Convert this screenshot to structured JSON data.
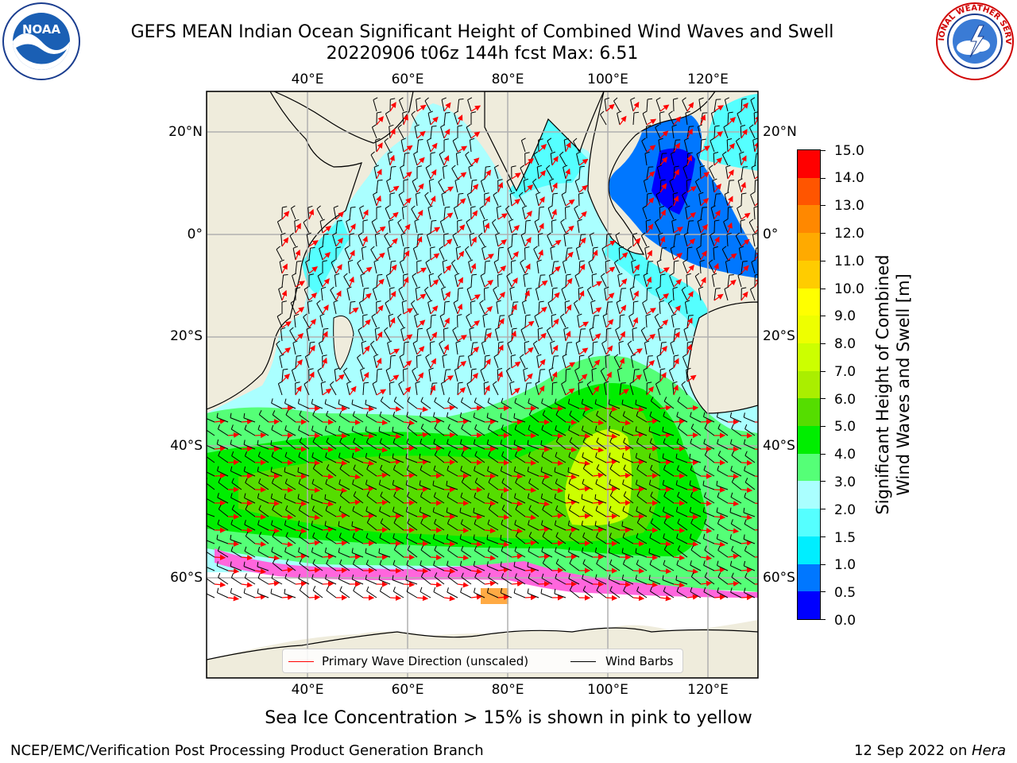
{
  "header": {
    "title_line1": "GEFS MEAN Indian Ocean Significant Height of Combined Wind Waves and Swell",
    "title_line2": "20220906 t06z 144h fcst   Max: 6.51"
  },
  "logos": {
    "noaa": {
      "icon": "noaa-logo",
      "text": "NOAA",
      "ring_text": "NATIONAL OCEANIC AND ATMOSPHERIC ADMINISTRATION · U.S. DEPARTMENT OF COMMERCE"
    },
    "nws": {
      "icon": "nws-logo",
      "ring_text": "NATIONAL WEATHER SERVICE"
    }
  },
  "map": {
    "lon_ticks": [
      "40°E",
      "60°E",
      "80°E",
      "100°E",
      "120°E"
    ],
    "lat_ticks_left": [
      "20°N",
      "0°",
      "20°S",
      "40°S",
      "60°S"
    ],
    "lat_ticks_right": [
      "20°N",
      "0°",
      "20°S",
      "40°S",
      "60°S"
    ],
    "lon_range": [
      21,
      129
    ],
    "lat_range": [
      -77,
      31
    ],
    "land_color": "#efecdc",
    "ocean_no_data_color": "#ffffff"
  },
  "colorbar": {
    "title": "Significant Height of Combined Wind Waves and Swell [m]",
    "title_line1": "Significant Height of Combined",
    "title_line2": "Wind Waves and Swell [m]",
    "labels": [
      "15.0",
      "14.0",
      "13.0",
      "12.0",
      "11.0",
      "10.0",
      "9.0",
      "8.0",
      "7.0",
      "6.0",
      "5.0",
      "4.0",
      "3.0",
      "2.0",
      "1.5",
      "1.0",
      "0.5",
      "0.0"
    ],
    "levels": [
      0.0,
      0.5,
      1.0,
      1.5,
      2.0,
      3.0,
      4.0,
      5.0,
      6.0,
      7.0,
      8.0,
      9.0,
      10.0,
      11.0,
      12.0,
      13.0,
      14.0,
      15.0
    ],
    "colors": [
      "#0000ff",
      "#0077ff",
      "#00eeff",
      "#55ffff",
      "#aaffff",
      "#55ff77",
      "#00ee00",
      "#55dd00",
      "#aaee00",
      "#ccff00",
      "#eeff00",
      "#ffff00",
      "#ffcc00",
      "#ffaa00",
      "#ff8800",
      "#ff5500",
      "#ff0000"
    ]
  },
  "legend": {
    "wave_label": "Primary Wave Direction (unscaled)",
    "wave_color": "#ff0000",
    "barb_label": "Wind Barbs",
    "barb_color": "#000000"
  },
  "caption": "Sea Ice Concentration > 15% is shown in pink to yellow",
  "footer": {
    "left": "NCEP/EMC/Verification Post Processing Product Generation Branch",
    "right_prefix": "12 Sep 2022 on ",
    "right_host": "Hera"
  }
}
